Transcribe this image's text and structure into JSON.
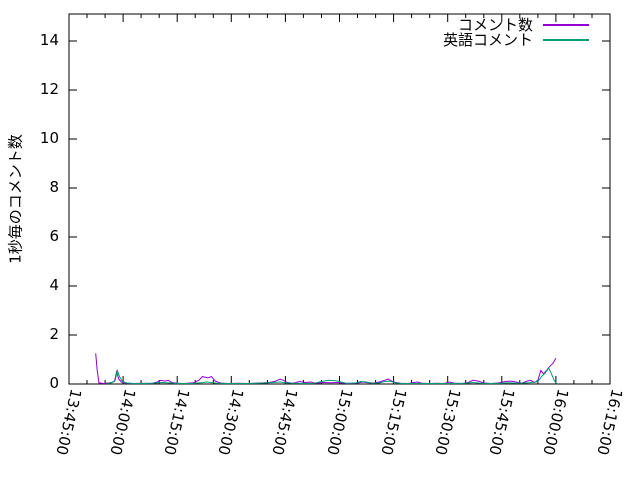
{
  "chart_data": {
    "type": "line",
    "title": "",
    "xlabel": "",
    "ylabel": "1秒毎のコメント数",
    "background_color": "#ffffff",
    "axis_color": "#000000",
    "grid": false,
    "legend_position": "top-right-inside",
    "xlim_minutes": [
      0,
      150
    ],
    "x_major_step_minutes": 15,
    "x_minor_step_minutes": 5,
    "x_tick_labels": [
      "13:45:00",
      "14:00:00",
      "14:15:00",
      "14:30:00",
      "14:45:00",
      "15:00:00",
      "15:15:00",
      "15:30:00",
      "15:45:00",
      "16:00:00",
      "16:15:00"
    ],
    "ylim": [
      0,
      15.1
    ],
    "y_tick_values": [
      0,
      2,
      4,
      6,
      8,
      10,
      12,
      14
    ],
    "y_ticks": [
      "0",
      "2",
      "4",
      "6",
      "8",
      "10",
      "12",
      "14"
    ],
    "legend": [
      {
        "name": "コメント数",
        "color": "#9400d3"
      },
      {
        "name": "英語コメント",
        "color": "#009e73"
      }
    ],
    "series": [
      {
        "name": "コメント数",
        "color": "#9400d3",
        "points_format": "[minutes_after_13:45, comments_per_second]",
        "points": [
          [
            7.4,
            1.25
          ],
          [
            7.8,
            0.6
          ],
          [
            8.3,
            0.05
          ],
          [
            9.5,
            0.02
          ],
          [
            11.5,
            0.05
          ],
          [
            12.6,
            0.1
          ],
          [
            13.2,
            0.5
          ],
          [
            13.8,
            0.2
          ],
          [
            14.5,
            0.08
          ],
          [
            16,
            0.03
          ],
          [
            18,
            0.02
          ],
          [
            20,
            0.03
          ],
          [
            23,
            0.02
          ],
          [
            24.5,
            0.08
          ],
          [
            25.5,
            0.15
          ],
          [
            26.5,
            0.12
          ],
          [
            27.5,
            0.15
          ],
          [
            28.5,
            0.06
          ],
          [
            30,
            0.03
          ],
          [
            32,
            0.02
          ],
          [
            34.5,
            0.05
          ],
          [
            36,
            0.15
          ],
          [
            37,
            0.3
          ],
          [
            38.5,
            0.25
          ],
          [
            39.5,
            0.3
          ],
          [
            40.5,
            0.12
          ],
          [
            42,
            0.04
          ],
          [
            44,
            0.02
          ],
          [
            47,
            0.03
          ],
          [
            50,
            0.02
          ],
          [
            53,
            0.04
          ],
          [
            55.5,
            0.06
          ],
          [
            57,
            0.1
          ],
          [
            58.5,
            0.2
          ],
          [
            59.5,
            0.15
          ],
          [
            60.5,
            0.06
          ],
          [
            62,
            0.03
          ],
          [
            64,
            0.1
          ],
          [
            65.5,
            0.06
          ],
          [
            67,
            0.08
          ],
          [
            68.5,
            0.03
          ],
          [
            70.5,
            0.06
          ],
          [
            72.5,
            0.05
          ],
          [
            74.5,
            0.06
          ],
          [
            76,
            0.03
          ],
          [
            78,
            0.02
          ],
          [
            80,
            0.04
          ],
          [
            81.5,
            0.08
          ],
          [
            83,
            0.05
          ],
          [
            84.5,
            0.04
          ],
          [
            86,
            0.08
          ],
          [
            87.5,
            0.15
          ],
          [
            88.5,
            0.2
          ],
          [
            89.5,
            0.12
          ],
          [
            90.5,
            0.06
          ],
          [
            92,
            0.03
          ],
          [
            94,
            0.02
          ],
          [
            96.5,
            0.08
          ],
          [
            98,
            0.03
          ],
          [
            100,
            0.02
          ],
          [
            102,
            0.03
          ],
          [
            104,
            0.02
          ],
          [
            105.5,
            0.08
          ],
          [
            107,
            0.03
          ],
          [
            109,
            0.02
          ],
          [
            110.5,
            0.05
          ],
          [
            112,
            0.15
          ],
          [
            113.5,
            0.12
          ],
          [
            115,
            0.04
          ],
          [
            117,
            0.02
          ],
          [
            119,
            0.04
          ],
          [
            121,
            0.1
          ],
          [
            122.5,
            0.12
          ],
          [
            124,
            0.08
          ],
          [
            125.5,
            0.03
          ],
          [
            127,
            0.12
          ],
          [
            128,
            0.15
          ],
          [
            129,
            0.06
          ],
          [
            130,
            0.15
          ],
          [
            130.8,
            0.55
          ],
          [
            131.6,
            0.42
          ],
          [
            132.4,
            0.55
          ],
          [
            133.2,
            0.7
          ],
          [
            134.2,
            0.85
          ],
          [
            135,
            1.05
          ]
        ]
      },
      {
        "name": "英語コメント",
        "color": "#009e73",
        "points_format": "[minutes_after_13:45, comments_per_second]",
        "points": [
          [
            10.5,
            0.02
          ],
          [
            12,
            0.06
          ],
          [
            12.8,
            0.15
          ],
          [
            13.4,
            0.55
          ],
          [
            14,
            0.3
          ],
          [
            14.8,
            0.1
          ],
          [
            16,
            0.04
          ],
          [
            18,
            0.02
          ],
          [
            21,
            0.02
          ],
          [
            24,
            0.04
          ],
          [
            25.5,
            0.06
          ],
          [
            27,
            0.05
          ],
          [
            29,
            0.03
          ],
          [
            31,
            0.02
          ],
          [
            34,
            0.02
          ],
          [
            36.5,
            0.05
          ],
          [
            38,
            0.08
          ],
          [
            39.5,
            0.06
          ],
          [
            41,
            0.03
          ],
          [
            44,
            0.02
          ],
          [
            47,
            0.02
          ],
          [
            50,
            0.02
          ],
          [
            54,
            0.04
          ],
          [
            56.5,
            0.06
          ],
          [
            58.5,
            0.08
          ],
          [
            60,
            0.05
          ],
          [
            62,
            0.03
          ],
          [
            65,
            0.02
          ],
          [
            68,
            0.03
          ],
          [
            70,
            0.1
          ],
          [
            72,
            0.15
          ],
          [
            74,
            0.13
          ],
          [
            75.5,
            0.08
          ],
          [
            77,
            0.03
          ],
          [
            79.5,
            0.04
          ],
          [
            81,
            0.1
          ],
          [
            82.5,
            0.08
          ],
          [
            84,
            0.03
          ],
          [
            86,
            0.04
          ],
          [
            87.5,
            0.1
          ],
          [
            89,
            0.12
          ],
          [
            90.5,
            0.05
          ],
          [
            92,
            0.02
          ],
          [
            95,
            0.02
          ],
          [
            99,
            0.02
          ],
          [
            103,
            0.02
          ],
          [
            107,
            0.02
          ],
          [
            110,
            0.03
          ],
          [
            112,
            0.06
          ],
          [
            114,
            0.03
          ],
          [
            117,
            0.02
          ],
          [
            120,
            0.03
          ],
          [
            122,
            0.05
          ],
          [
            124,
            0.03
          ],
          [
            126.5,
            0.04
          ],
          [
            128.5,
            0.06
          ],
          [
            130,
            0.1
          ],
          [
            131,
            0.3
          ],
          [
            132,
            0.45
          ],
          [
            133,
            0.65
          ],
          [
            133.8,
            0.4
          ],
          [
            134.5,
            0.15
          ],
          [
            135.2,
            0.02
          ]
        ]
      }
    ]
  }
}
